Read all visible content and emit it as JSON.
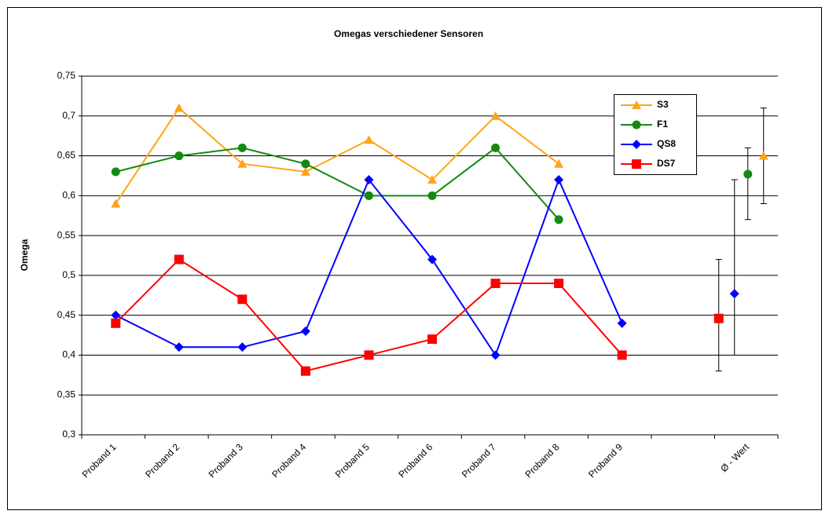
{
  "chart_data": {
    "type": "line",
    "title": "Omegas verschiedener Sensoren",
    "y_label": "Omega",
    "categories": [
      "Proband 1",
      "Proband 2",
      "Proband 3",
      "Proband 4",
      "Proband 5",
      "Proband 6",
      "Proband 7",
      "Proband 8",
      "Proband 9",
      null,
      "Ø - Wert"
    ],
    "series": [
      {
        "name": "S3",
        "color": "#ffa31a",
        "marker": "triangle",
        "values": [
          0.59,
          0.71,
          0.64,
          0.63,
          0.67,
          0.62,
          0.7,
          0.64,
          null,
          null,
          0.65
        ],
        "range": [
          0.59,
          0.71
        ]
      },
      {
        "name": "F1",
        "color": "#138a13",
        "marker": "circle",
        "values": [
          0.63,
          0.65,
          0.66,
          0.64,
          0.6,
          0.6,
          0.66,
          0.57,
          null,
          null,
          0.627
        ],
        "range": [
          0.57,
          0.66
        ]
      },
      {
        "name": "QS8",
        "color": "#0000ff",
        "marker": "diamond",
        "values": [
          0.45,
          0.41,
          0.41,
          0.43,
          0.62,
          0.52,
          0.4,
          0.62,
          0.44,
          null,
          0.477
        ],
        "range": [
          0.4,
          0.62
        ]
      },
      {
        "name": "DS7",
        "color": "#ff0000",
        "marker": "square",
        "values": [
          0.44,
          0.52,
          0.47,
          0.38,
          0.4,
          0.42,
          0.49,
          0.49,
          0.4,
          null,
          0.446
        ],
        "range": [
          0.38,
          0.52
        ]
      }
    ],
    "ylim": [
      0.3,
      0.75
    ],
    "yticks": [
      {
        "value": 0.3,
        "label": "0,3"
      },
      {
        "value": 0.35,
        "label": "0,35"
      },
      {
        "value": 0.4,
        "label": "0,4"
      },
      {
        "value": 0.45,
        "label": "0,45"
      },
      {
        "value": 0.5,
        "label": "0,5"
      },
      {
        "value": 0.55,
        "label": "0,55"
      },
      {
        "value": 0.6,
        "label": "0,6"
      },
      {
        "value": 0.65,
        "label": "0,65"
      },
      {
        "value": 0.7,
        "label": "0,7"
      },
      {
        "value": 0.75,
        "label": "0,75"
      }
    ],
    "grid": true,
    "legend": "top-right"
  }
}
